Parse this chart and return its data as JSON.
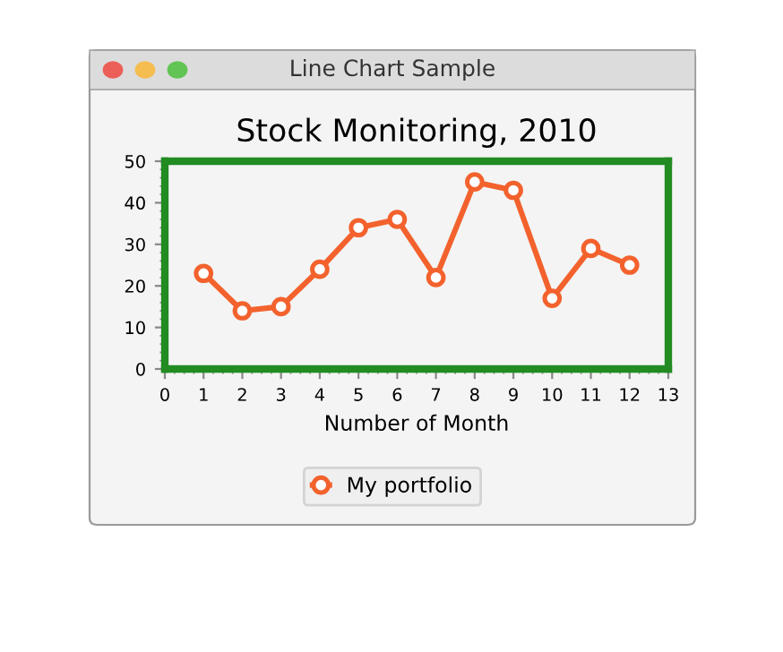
{
  "chart_data": {
    "type": "line",
    "title": "Stock Monitoring, 2010",
    "xlabel": "Number of Month",
    "annotations": [
      "Line Chart Sample"
    ],
    "x": [
      1,
      2,
      3,
      4,
      5,
      6,
      7,
      8,
      9,
      10,
      11,
      12
    ],
    "series": [
      {
        "name": "My portfolio",
        "color": "#f3622d",
        "values": [
          23,
          14,
          15,
          24,
          34,
          36,
          22,
          45,
          43,
          17,
          29,
          25
        ]
      }
    ],
    "xlim": [
      0,
      13
    ],
    "xticks": [
      0,
      1,
      2,
      3,
      4,
      5,
      6,
      7,
      8,
      9,
      10,
      11,
      12,
      13
    ],
    "ylim": [
      0,
      50
    ],
    "yticks": [
      0,
      10,
      20,
      30,
      40,
      50
    ],
    "grid": false,
    "legend": "bottom",
    "marker": "circle",
    "line_style": "solid"
  }
}
